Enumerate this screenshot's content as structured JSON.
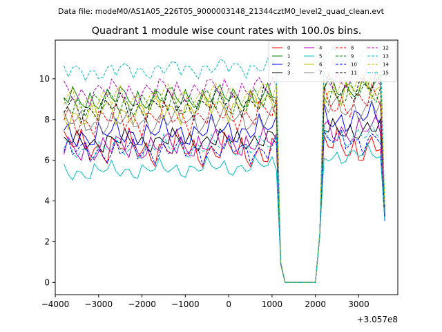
{
  "figure": {
    "suptitle": "Data file: modeM0/AS1A05_226T05_9000003148_21344cztM0_level2_quad_clean.evt",
    "title": "Quadrant 1 module wise count rates with 100.0s bins."
  },
  "chart_data": {
    "type": "line",
    "title": "Quadrant 1 module wise count rates with 100.0s bins.",
    "xlabel": "",
    "ylabel": "",
    "x_offset_label": "+3.057e8",
    "xlim": [
      -4000,
      3900
    ],
    "ylim": [
      -0.6,
      11.9
    ],
    "xticks": [
      -4000,
      -3000,
      -2000,
      -1000,
      0,
      1000,
      2000,
      3000
    ],
    "xtick_labels": [
      "−4000",
      "−3000",
      "−2000",
      "−1000",
      "0",
      "1000",
      "2000",
      "3000"
    ],
    "yticks": [
      0,
      2,
      4,
      6,
      8,
      10
    ],
    "ytick_labels": [
      "0",
      "2",
      "4",
      "6",
      "8",
      "10"
    ],
    "grid": false,
    "legend_placement": "top-right",
    "legend_columns": 4,
    "x": {
      "start": -3800,
      "step": 100,
      "count": 75,
      "gap_start": 1200,
      "gap_end": 2100
    },
    "series": [
      {
        "name": "0",
        "color": "#ff0000",
        "dash": "solid",
        "base": 6.7,
        "trend": -0.5,
        "amp": 0.55,
        "phase": 0.3
      },
      {
        "name": "1",
        "color": "#008000",
        "dash": "solid",
        "base": 9.0,
        "trend": 0.2,
        "amp": 0.4,
        "phase": 1.2
      },
      {
        "name": "2",
        "color": "#0000ff",
        "dash": "solid",
        "base": 7.2,
        "trend": 0.5,
        "amp": 0.45,
        "phase": 2.1
      },
      {
        "name": "3",
        "color": "#000000",
        "dash": "solid",
        "base": 6.9,
        "trend": 0.2,
        "amp": 0.35,
        "phase": 0.8
      },
      {
        "name": "4",
        "color": "#bf00bf",
        "dash": "solid",
        "base": 6.5,
        "trend": 0.6,
        "amp": 0.45,
        "phase": 1.7
      },
      {
        "name": "5",
        "color": "#00bfbf",
        "dash": "solid",
        "base": 5.4,
        "trend": 0.5,
        "amp": 0.3,
        "phase": 2.6
      },
      {
        "name": "6",
        "color": "#bfbf00",
        "dash": "solid",
        "base": 8.2,
        "trend": 0.9,
        "amp": 0.45,
        "phase": 3.1
      },
      {
        "name": "7",
        "color": "#808080",
        "dash": "solid",
        "base": 7.8,
        "trend": 0.4,
        "amp": 0.4,
        "phase": 0.5
      },
      {
        "name": "8",
        "color": "#ff0000",
        "dash": "dashed",
        "base": 7.9,
        "trend": 0.6,
        "amp": 0.5,
        "phase": 1.9
      },
      {
        "name": "9",
        "color": "#008000",
        "dash": "dashed",
        "base": 8.8,
        "trend": 0.1,
        "amp": 0.45,
        "phase": 2.8
      },
      {
        "name": "10",
        "color": "#0000ff",
        "dash": "dashed",
        "base": 6.4,
        "trend": 0.2,
        "amp": 0.4,
        "phase": 0.1
      },
      {
        "name": "11",
        "color": "#000000",
        "dash": "dashed",
        "base": 8.5,
        "trend": 0.7,
        "amp": 0.45,
        "phase": 1.4
      },
      {
        "name": "12",
        "color": "#bf00bf",
        "dash": "dashed",
        "base": 9.3,
        "trend": 0.4,
        "amp": 0.4,
        "phase": 2.3
      },
      {
        "name": "13",
        "color": "#00bfbf",
        "dash": "dashed",
        "base": 10.3,
        "trend": 0.5,
        "amp": 0.3,
        "phase": 0.9
      },
      {
        "name": "14",
        "color": "#bfbf00",
        "dash": "dashed",
        "base": 8.9,
        "trend": 0.6,
        "amp": 0.45,
        "phase": 1.6
      },
      {
        "name": "15",
        "color": "#00bfbf",
        "dash": "dashdot",
        "base": 6.5,
        "trend": 0.3,
        "amp": 0.35,
        "phase": 2.0
      }
    ]
  }
}
